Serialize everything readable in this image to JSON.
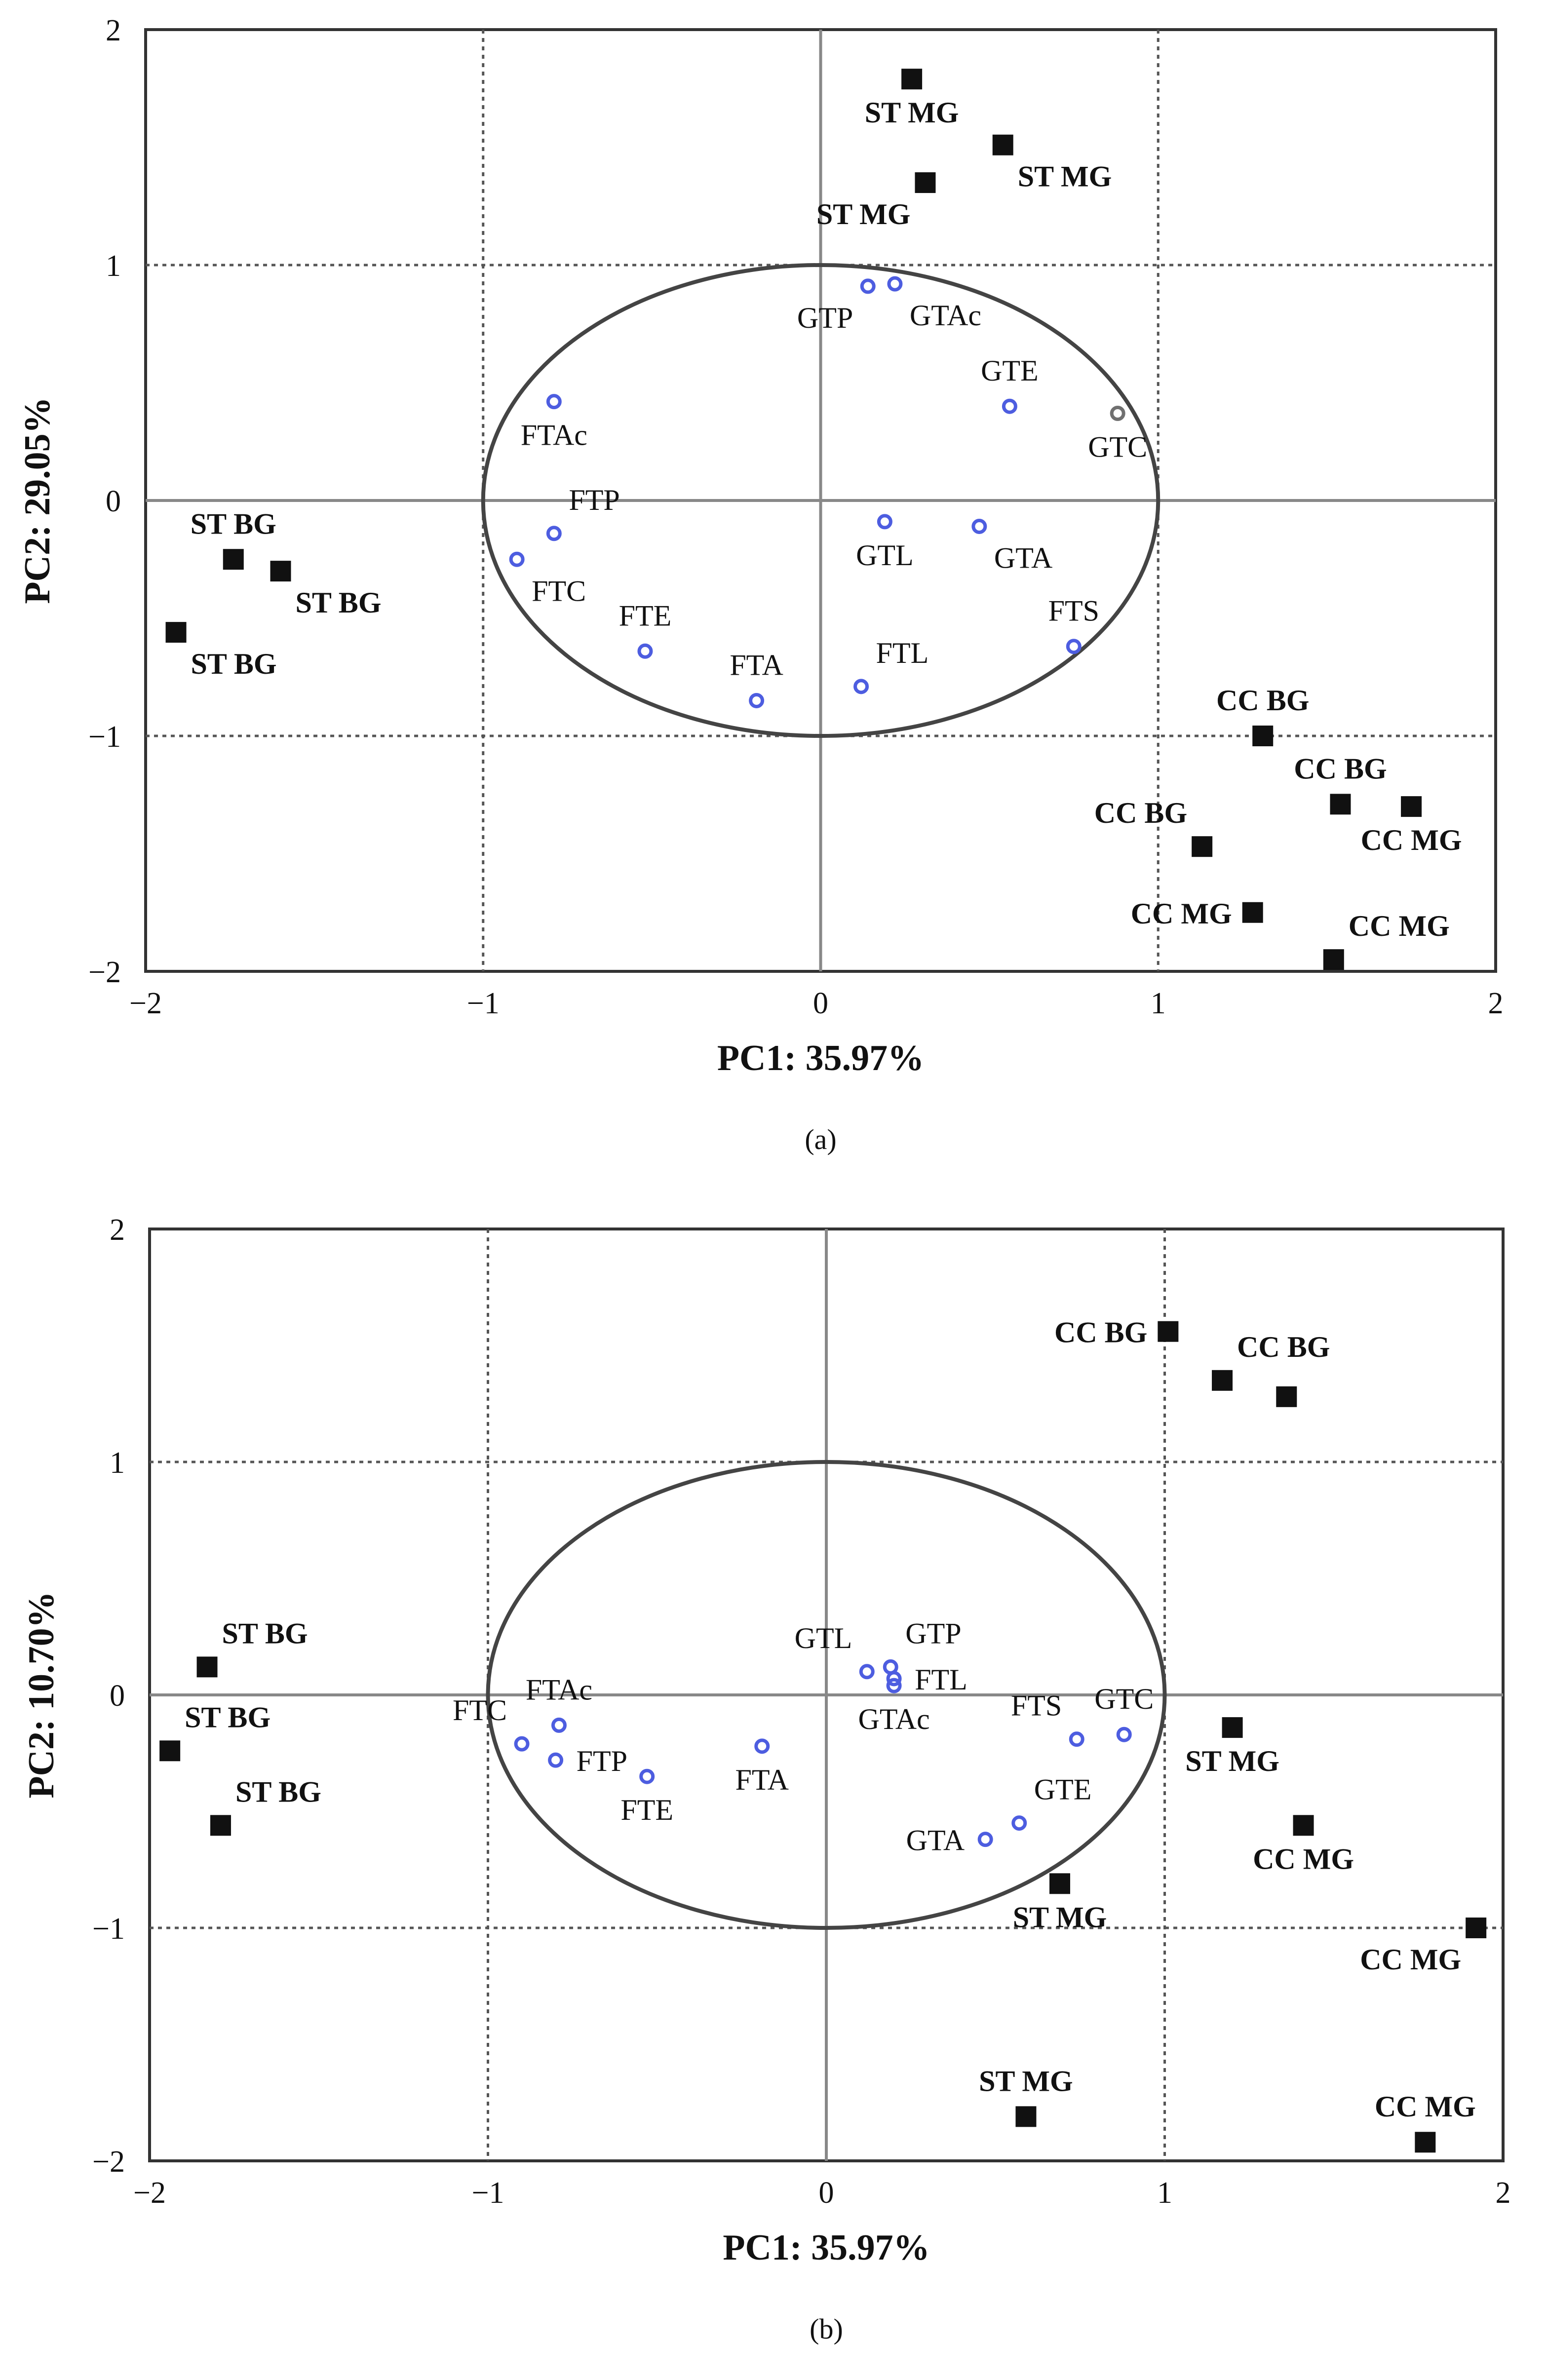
{
  "figure": {
    "panels": [
      "(a)",
      "(b)"
    ]
  },
  "colors": {
    "frame": "#333333",
    "grid": "#555555",
    "axis_zero": "#888888",
    "circle": "#444444",
    "sample_marker": "#111111",
    "variable_marker": "#4d5de0",
    "variable_marker_alt": "#707070"
  },
  "chart_data": [
    {
      "type": "scatter",
      "panel_label": "(a)",
      "xlabel": "PC1: 35.97%",
      "ylabel": "PC2: 29.05%",
      "xlim": [
        -2,
        2
      ],
      "ylim": [
        -2,
        2
      ],
      "xticks": [
        -2,
        -1,
        0,
        1,
        2
      ],
      "yticks": [
        -2,
        -1,
        0,
        1,
        2
      ],
      "x_tick_labels": [
        "−2",
        "−1",
        "0",
        "1",
        "2"
      ],
      "y_tick_labels": [
        "−2",
        "−1",
        "0",
        "1",
        "2"
      ],
      "grid": true,
      "correlation_circle_radius": 1,
      "samples": [
        {
          "label": "ST MG",
          "x": 0.27,
          "y": 1.79,
          "label_pos": "below"
        },
        {
          "label": "ST MG",
          "x": 0.54,
          "y": 1.51,
          "label_pos": "below-right"
        },
        {
          "label": "ST MG",
          "x": 0.31,
          "y": 1.35,
          "label_pos": "below-left"
        },
        {
          "label": "ST BG",
          "x": -1.74,
          "y": -0.25,
          "label_pos": "above"
        },
        {
          "label": "ST BG",
          "x": -1.6,
          "y": -0.3,
          "label_pos": "below-right"
        },
        {
          "label": "ST BG",
          "x": -1.91,
          "y": -0.56,
          "label_pos": "below-right"
        },
        {
          "label": "CC BG",
          "x": 1.31,
          "y": -1.0,
          "label_pos": "above"
        },
        {
          "label": "CC BG",
          "x": 1.54,
          "y": -1.29,
          "label_pos": "above"
        },
        {
          "label": "CC MG",
          "x": 1.75,
          "y": -1.3,
          "label_pos": "below"
        },
        {
          "label": "CC BG",
          "x": 1.13,
          "y": -1.47,
          "label_pos": "above-left"
        },
        {
          "label": "CC MG",
          "x": 1.28,
          "y": -1.75,
          "label_pos": "left"
        },
        {
          "label": "CC MG",
          "x": 1.52,
          "y": -1.95,
          "label_pos": "above-right"
        }
      ],
      "variables": [
        {
          "label": "GTP",
          "x": 0.14,
          "y": 0.91,
          "label_pos": "below-left"
        },
        {
          "label": "GTAc",
          "x": 0.22,
          "y": 0.92,
          "label_pos": "below-right"
        },
        {
          "label": "GTE",
          "x": 0.56,
          "y": 0.4,
          "label_pos": "above"
        },
        {
          "label": "GTC",
          "x": 0.88,
          "y": 0.37,
          "label_pos": "below",
          "alt_color": true
        },
        {
          "label": "FTAc",
          "x": -0.79,
          "y": 0.42,
          "label_pos": "below"
        },
        {
          "label": "FTP",
          "x": -0.79,
          "y": -0.14,
          "label_pos": "above-right"
        },
        {
          "label": "FTC",
          "x": -0.9,
          "y": -0.25,
          "label_pos": "below-right"
        },
        {
          "label": "GTL",
          "x": 0.19,
          "y": -0.09,
          "label_pos": "below"
        },
        {
          "label": "GTA",
          "x": 0.47,
          "y": -0.11,
          "label_pos": "below-right"
        },
        {
          "label": "FTE",
          "x": -0.52,
          "y": -0.64,
          "label_pos": "above"
        },
        {
          "label": "FTA",
          "x": -0.19,
          "y": -0.85,
          "label_pos": "above"
        },
        {
          "label": "FTL",
          "x": 0.12,
          "y": -0.79,
          "label_pos": "above-right"
        },
        {
          "label": "FTS",
          "x": 0.75,
          "y": -0.62,
          "label_pos": "above"
        }
      ]
    },
    {
      "type": "scatter",
      "panel_label": "(b)",
      "xlabel": "PC1: 35.97%",
      "ylabel": "PC2: 10.70%",
      "xlim": [
        -2,
        2
      ],
      "ylim": [
        -2,
        2
      ],
      "xticks": [
        -2,
        -1,
        0,
        1,
        2
      ],
      "yticks": [
        -2,
        -1,
        0,
        1,
        2
      ],
      "x_tick_labels": [
        "−2",
        "−1",
        "0",
        "1",
        "2"
      ],
      "y_tick_labels": [
        "−2",
        "−1",
        "0",
        "1",
        "2"
      ],
      "grid": true,
      "correlation_circle_radius": 1,
      "samples": [
        {
          "label": "CC BG",
          "x": 1.01,
          "y": 1.56,
          "label_pos": "left"
        },
        {
          "label": "CC BG",
          "x": 1.17,
          "y": 1.35,
          "label_pos": "above-right"
        },
        {
          "label": "",
          "x": 1.36,
          "y": 1.28,
          "label_pos": "none"
        },
        {
          "label": "ST BG",
          "x": -1.83,
          "y": 0.12,
          "label_pos": "above-right"
        },
        {
          "label": "ST BG",
          "x": -1.94,
          "y": -0.24,
          "label_pos": "above-right"
        },
        {
          "label": "ST BG",
          "x": -1.79,
          "y": -0.56,
          "label_pos": "above-right"
        },
        {
          "label": "ST MG",
          "x": 1.2,
          "y": -0.14,
          "label_pos": "below"
        },
        {
          "label": "CC MG",
          "x": 1.41,
          "y": -0.56,
          "label_pos": "below"
        },
        {
          "label": "ST MG",
          "x": 0.69,
          "y": -0.81,
          "label_pos": "below"
        },
        {
          "label": "CC MG",
          "x": 1.92,
          "y": -1.0,
          "label_pos": "below-left"
        },
        {
          "label": "ST MG",
          "x": 0.59,
          "y": -1.81,
          "label_pos": "above"
        },
        {
          "label": "CC MG",
          "x": 1.77,
          "y": -1.92,
          "label_pos": "above"
        }
      ],
      "variables": [
        {
          "label": "GTL",
          "x": 0.12,
          "y": 0.1,
          "label_pos": "above-left"
        },
        {
          "label": "GTP",
          "x": 0.19,
          "y": 0.12,
          "label_pos": "above-right"
        },
        {
          "label": "FTL",
          "x": 0.2,
          "y": 0.07,
          "label_pos": "right"
        },
        {
          "label": "GTAc",
          "x": 0.2,
          "y": 0.04,
          "label_pos": "below"
        },
        {
          "label": "FTAc",
          "x": -0.79,
          "y": -0.13,
          "label_pos": "above"
        },
        {
          "label": "FTC",
          "x": -0.9,
          "y": -0.21,
          "label_pos": "above-left"
        },
        {
          "label": "FTP",
          "x": -0.8,
          "y": -0.28,
          "label_pos": "right"
        },
        {
          "label": "FTE",
          "x": -0.53,
          "y": -0.35,
          "label_pos": "below"
        },
        {
          "label": "FTA",
          "x": -0.19,
          "y": -0.22,
          "label_pos": "below"
        },
        {
          "label": "FTS",
          "x": 0.74,
          "y": -0.19,
          "label_pos": "above-left"
        },
        {
          "label": "GTC",
          "x": 0.88,
          "y": -0.17,
          "label_pos": "above"
        },
        {
          "label": "GTE",
          "x": 0.57,
          "y": -0.55,
          "label_pos": "above-right"
        },
        {
          "label": "GTA",
          "x": 0.47,
          "y": -0.62,
          "label_pos": "left"
        }
      ]
    }
  ]
}
